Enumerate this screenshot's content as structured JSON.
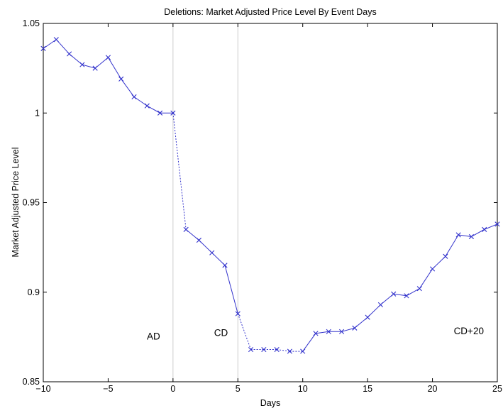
{
  "chart_data": {
    "type": "line",
    "title": "Deletions: Market Adjusted Price Level By Event Days",
    "xlabel": "Days",
    "ylabel": "Market Adjusted Price Level",
    "xlim": [
      -10,
      25
    ],
    "ylim": [
      0.85,
      1.05
    ],
    "xticks": [
      -10,
      -5,
      0,
      5,
      10,
      15,
      20,
      25
    ],
    "xtick_labels": [
      "−10",
      "−5",
      "0",
      "5",
      "10",
      "15",
      "20",
      "25"
    ],
    "yticks": [
      0.85,
      0.9,
      0.95,
      1,
      1.05
    ],
    "ytick_labels": [
      "0.85",
      "0.9",
      "0.95",
      "1",
      "1.05"
    ],
    "grid": false,
    "line_color": "#3333cc",
    "marker": "x",
    "x": [
      -10,
      -9,
      -8,
      -7,
      -6,
      -5,
      -4,
      -3,
      -2,
      -1,
      0,
      1,
      2,
      3,
      4,
      5,
      6,
      7,
      8,
      9,
      10,
      11,
      12,
      13,
      14,
      15,
      16,
      17,
      18,
      19,
      20,
      21,
      22,
      23,
      24,
      25
    ],
    "y": [
      1.036,
      1.041,
      1.033,
      1.027,
      1.025,
      1.031,
      1.019,
      1.009,
      1.004,
      1.0,
      1.0,
      0.935,
      0.929,
      0.922,
      0.915,
      0.888,
      0.868,
      0.868,
      0.868,
      0.867,
      0.867,
      0.877,
      0.878,
      0.878,
      0.88,
      0.886,
      0.893,
      0.899,
      0.898,
      0.902,
      0.913,
      0.92,
      0.932,
      0.931,
      0.935,
      0.938
    ],
    "reference_lines": [
      {
        "x": 0,
        "color": "#cccccc"
      },
      {
        "x": 5,
        "color": "#cccccc"
      }
    ],
    "annotations": [
      {
        "text": "AD",
        "x": -1.5,
        "y": 0.8735
      },
      {
        "text": "CD",
        "x": 3.7,
        "y": 0.8755
      },
      {
        "text": "CD+20",
        "x": 22.8,
        "y": 0.8765
      }
    ]
  }
}
